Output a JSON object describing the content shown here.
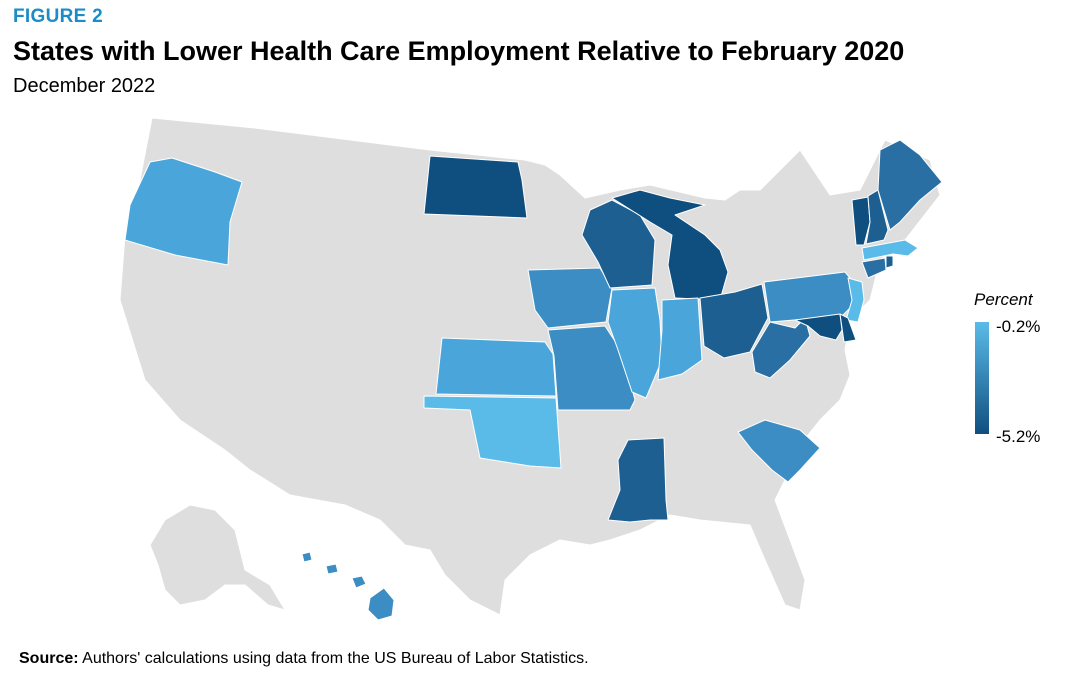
{
  "figure_label": "FIGURE 2",
  "title": "States with Lower Health Care Employment Relative to February 2020",
  "subtitle": "December 2022",
  "legend": {
    "title": "Percent",
    "max_label": "-0.2%",
    "min_label": "-5.2%",
    "color_light": "#5bbbe8",
    "color_dark": "#0f4f80"
  },
  "source": {
    "label": "Source:",
    "text": " Authors' calculations using data from the US Bureau of Labor Statistics."
  },
  "colors": {
    "no_data": "#dedede",
    "lightest": "#5bbbe8",
    "light": "#4aa6da",
    "medium": "#3b8dc4",
    "medium_dark": "#2a6fa3",
    "dark": "#1e5f91",
    "darkest": "#0f4f80"
  },
  "map_data": {
    "highlighted_states": [
      {
        "state": "Oregon",
        "shade": "light"
      },
      {
        "state": "North Dakota",
        "shade": "darkest"
      },
      {
        "state": "Kansas",
        "shade": "light"
      },
      {
        "state": "Oklahoma",
        "shade": "lightest"
      },
      {
        "state": "Iowa",
        "shade": "medium"
      },
      {
        "state": "Missouri",
        "shade": "medium"
      },
      {
        "state": "Wisconsin",
        "shade": "dark"
      },
      {
        "state": "Illinois",
        "shade": "light"
      },
      {
        "state": "Michigan",
        "shade": "darkest"
      },
      {
        "state": "Indiana",
        "shade": "light"
      },
      {
        "state": "Ohio",
        "shade": "dark"
      },
      {
        "state": "Mississippi",
        "shade": "dark"
      },
      {
        "state": "West Virginia",
        "shade": "medium_dark"
      },
      {
        "state": "Pennsylvania",
        "shade": "medium"
      },
      {
        "state": "New Jersey",
        "shade": "lightest"
      },
      {
        "state": "Delaware",
        "shade": "darkest"
      },
      {
        "state": "Maryland",
        "shade": "darkest"
      },
      {
        "state": "Connecticut",
        "shade": "medium_dark"
      },
      {
        "state": "Rhode Island",
        "shade": "dark"
      },
      {
        "state": "Massachusetts",
        "shade": "lightest"
      },
      {
        "state": "Vermont",
        "shade": "darkest"
      },
      {
        "state": "New Hampshire",
        "shade": "dark"
      },
      {
        "state": "Maine",
        "shade": "medium_dark"
      },
      {
        "state": "South Carolina",
        "shade": "medium"
      },
      {
        "state": "Hawaii",
        "shade": "medium"
      }
    ]
  }
}
